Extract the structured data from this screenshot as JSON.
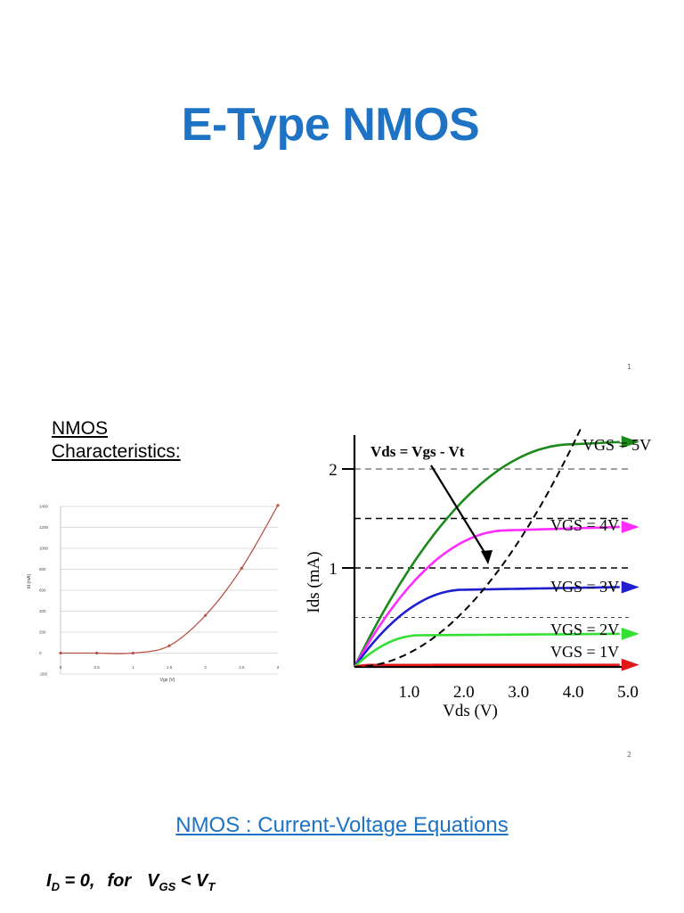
{
  "slide1": {
    "title": "E-Type NMOS",
    "page_number": "1"
  },
  "slide2": {
    "heading_line1": "NMOS",
    "heading_line2": "Characteristics:",
    "page_number": "2"
  },
  "slide3": {
    "title": "NMOS : Current-Voltage Equations",
    "equation_text": "I_D = 0, for V_GS < V_T"
  },
  "colors": {
    "title_blue": "#1f73c4",
    "curve_brown": "#b5554a",
    "vgs5": "#1b8a1b",
    "vgs4": "#ff2bff",
    "vgs3": "#1f1fd0",
    "vgs2": "#33e033",
    "vgs1": "#e01818"
  },
  "chart_data": [
    {
      "type": "line",
      "title": "",
      "xlabel": "Vgs (V)",
      "ylabel": "Id (mA)",
      "x": [
        0,
        0.5,
        1,
        1.5,
        2,
        2.5,
        3
      ],
      "x_tick_labels": [
        "0",
        "0.5",
        "1",
        "1.5",
        "2",
        "2.5",
        "3"
      ],
      "y_ticks": [
        -200,
        0,
        200,
        400,
        600,
        800,
        1000,
        1200,
        1400
      ],
      "ylim": [
        -200,
        1400
      ],
      "xlim": [
        0,
        3
      ],
      "grid": true,
      "series": [
        {
          "values": [
            0,
            0,
            0,
            70,
            360,
            810,
            1410
          ]
        }
      ]
    },
    {
      "type": "line",
      "title": "",
      "xlabel": "Vds (V)",
      "ylabel": "Ids (mA)",
      "xlim": [
        0,
        5.0
      ],
      "ylim": [
        0,
        2.3
      ],
      "x_ticks": [
        1.0,
        2.0,
        3.0,
        4.0,
        5.0
      ],
      "x_tick_labels": [
        "1.0",
        "2.0",
        "3.0",
        "4.0",
        "5.0"
      ],
      "y_ticks": [
        1,
        2
      ],
      "y_tick_labels": [
        "1",
        "2"
      ],
      "grid": true,
      "annotation": "Vds = Vgs - Vt",
      "series": [
        {
          "name": "VGS = 5V",
          "saturation": 2.25
        },
        {
          "name": "VGS = 4V",
          "saturation": 1.38
        },
        {
          "name": "VGS = 3V",
          "saturation": 0.78
        },
        {
          "name": "VGS = 2V",
          "saturation": 0.32
        },
        {
          "name": "VGS = 1V",
          "saturation": 0.02
        }
      ]
    }
  ]
}
